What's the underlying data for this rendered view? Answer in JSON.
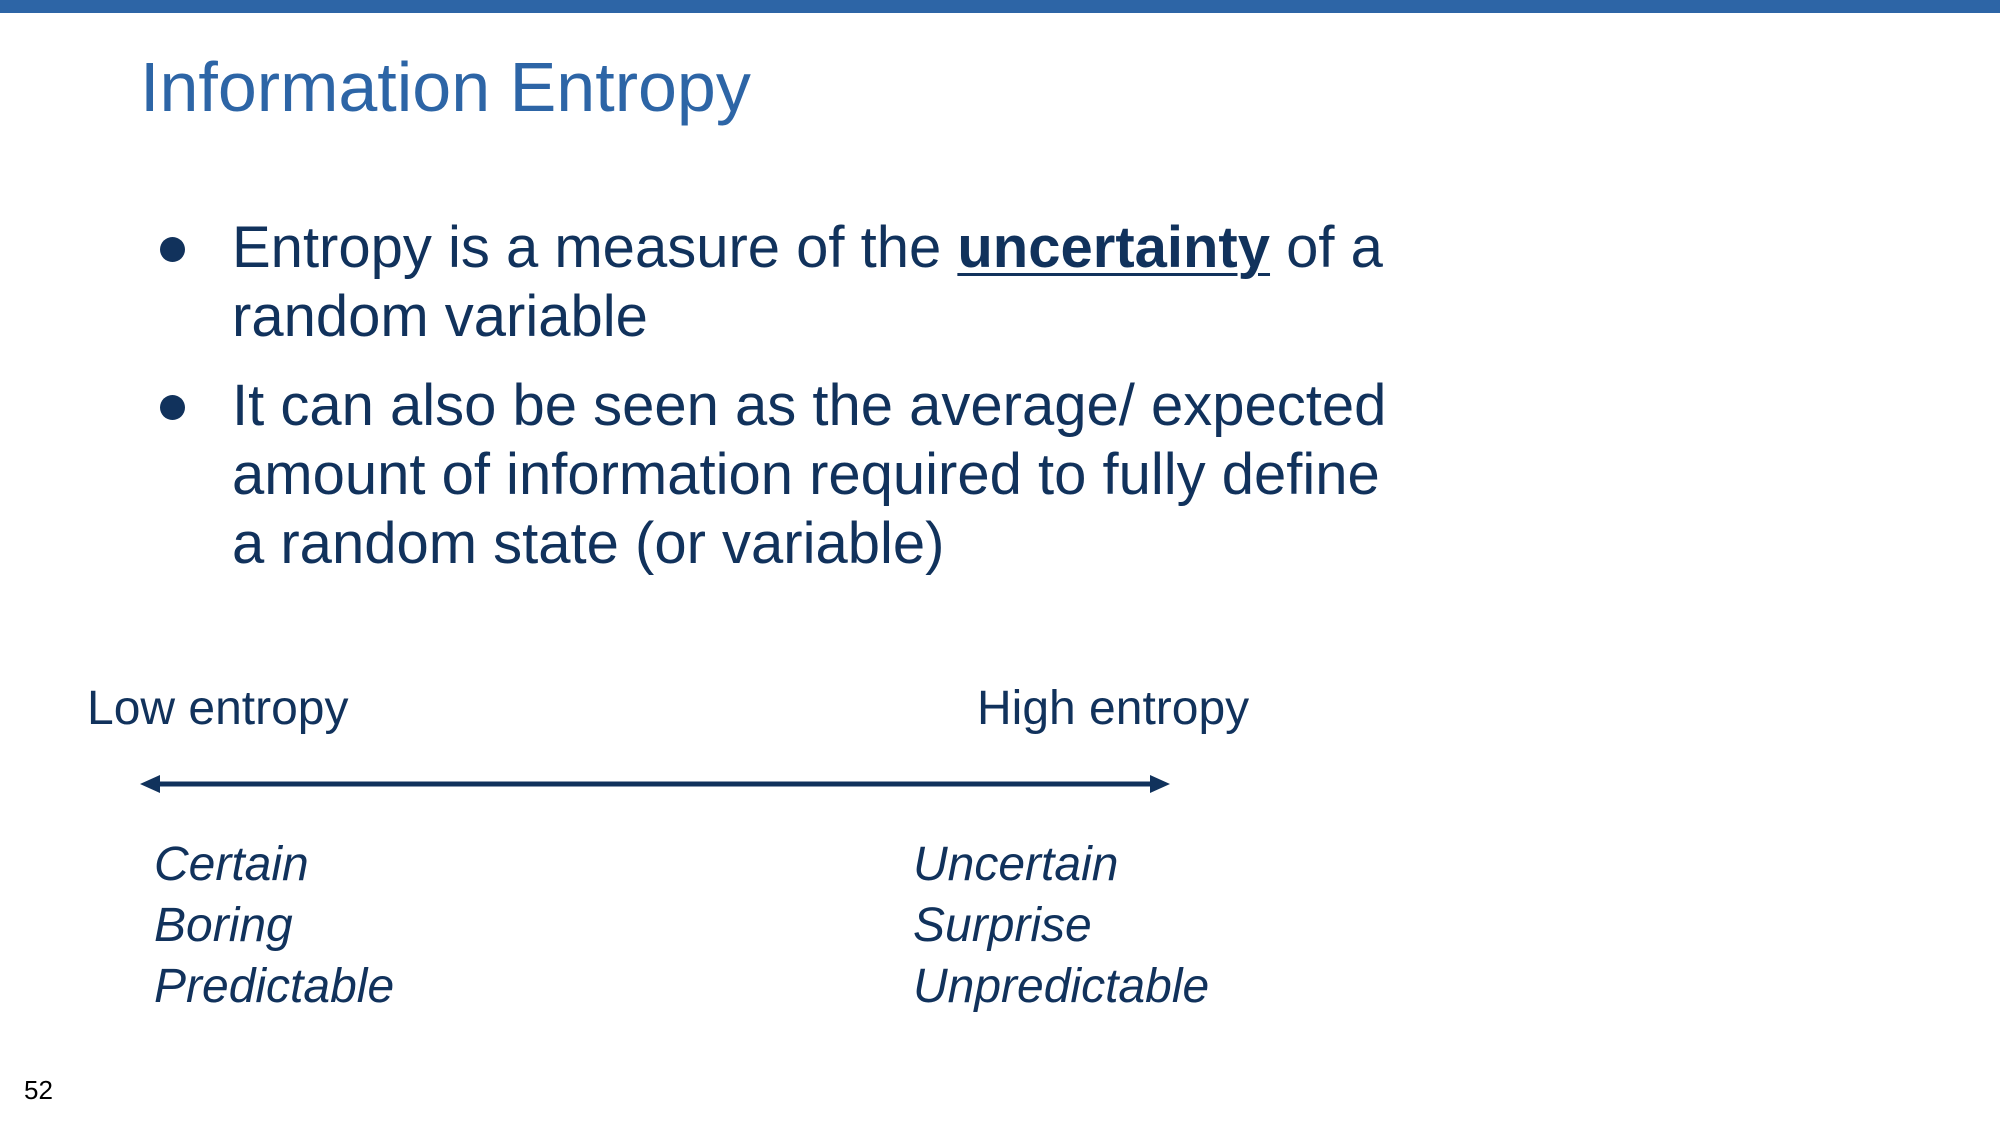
{
  "slide": {
    "title": "Information Entropy",
    "accent_color": "#2d65a6",
    "text_color": "#11325c",
    "page_number": "52"
  },
  "bullets": [
    {
      "before": "Entropy is a measure of the ",
      "emphasis": "uncertainty",
      "after": " of a random variable"
    },
    {
      "text": "It can also be seen as the average/ expected amount of information required to fully define a random state (or variable)"
    }
  ],
  "entropy_scale": {
    "low_label": "Low entropy",
    "high_label": "High entropy",
    "low_descriptors": [
      "Certain",
      "Boring",
      "Predictable"
    ],
    "high_descriptors": [
      "Uncertain",
      "Surprise",
      "Unpredictable"
    ],
    "arrow_icon": "double-headed-arrow"
  }
}
